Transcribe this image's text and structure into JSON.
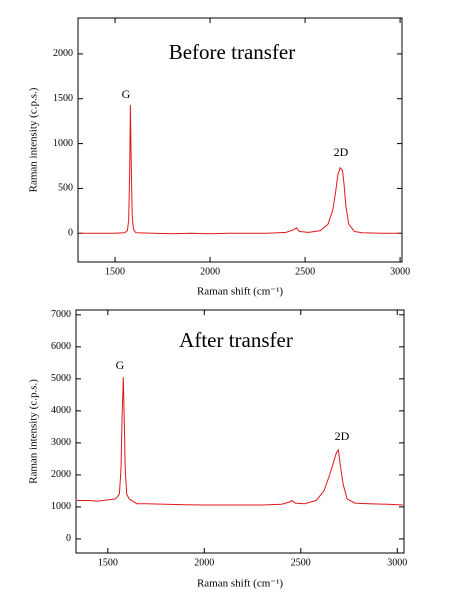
{
  "chart_data": [
    {
      "type": "line",
      "title": "Before transfer",
      "x_label": "Raman shift (cm⁻¹)",
      "y_label": "Raman intensity (c.p.s.)",
      "annotations": [
        "G",
        "2D"
      ],
      "xlim": [
        1305,
        3010
      ],
      "ylim": [
        -320,
        2400
      ],
      "xticks": [
        1500,
        2000,
        2500,
        3000
      ],
      "yticks": [
        0,
        500,
        1000,
        1500,
        2000
      ],
      "series": [
        {
          "color": "#e0181b",
          "x": [
            1310,
            1400,
            1500,
            1550,
            1565,
            1572,
            1577,
            1581,
            1585,
            1590,
            1597,
            1610,
            1700,
            1800,
            1900,
            2000,
            2100,
            2200,
            2300,
            2400,
            2440,
            2455,
            2470,
            2520,
            2580,
            2620,
            2645,
            2660,
            2672,
            2685,
            2697,
            2705,
            2715,
            2730,
            2760,
            2800,
            2900,
            3005
          ],
          "values": [
            0,
            0,
            0,
            5,
            30,
            150,
            700,
            1430,
            800,
            200,
            40,
            5,
            0,
            -5,
            0,
            -5,
            0,
            0,
            0,
            10,
            40,
            60,
            20,
            10,
            30,
            100,
            250,
            450,
            650,
            730,
            700,
            550,
            300,
            100,
            20,
            5,
            0,
            0
          ]
        }
      ]
    },
    {
      "type": "line",
      "title": "After transfer",
      "x_label": "Raman shift (cm⁻¹)",
      "y_label": "Raman intensity (c.p.s.)",
      "annotations": [
        "G",
        "2D"
      ],
      "xlim": [
        1335,
        3035
      ],
      "ylim": [
        -440,
        7150
      ],
      "xticks": [
        1500,
        2000,
        2500,
        3000
      ],
      "yticks": [
        0,
        1000,
        2000,
        3000,
        4000,
        5000,
        6000,
        7000
      ],
      "series": [
        {
          "color": "#e0181b",
          "x": [
            1340,
            1400,
            1450,
            1500,
            1540,
            1560,
            1568,
            1574,
            1580,
            1585,
            1590,
            1598,
            1610,
            1650,
            1700,
            1800,
            1900,
            2000,
            2100,
            2200,
            2300,
            2400,
            2440,
            2455,
            2470,
            2520,
            2580,
            2620,
            2650,
            2670,
            2685,
            2695,
            2705,
            2720,
            2740,
            2780,
            2850,
            2950,
            3030
          ],
          "values": [
            1200,
            1200,
            1180,
            1220,
            1250,
            1400,
            2200,
            3800,
            5050,
            3800,
            2200,
            1400,
            1250,
            1100,
            1100,
            1080,
            1070,
            1060,
            1060,
            1060,
            1060,
            1080,
            1150,
            1200,
            1120,
            1100,
            1200,
            1500,
            2000,
            2400,
            2700,
            2780,
            2300,
            1700,
            1250,
            1120,
            1100,
            1080,
            1060
          ]
        }
      ]
    }
  ]
}
